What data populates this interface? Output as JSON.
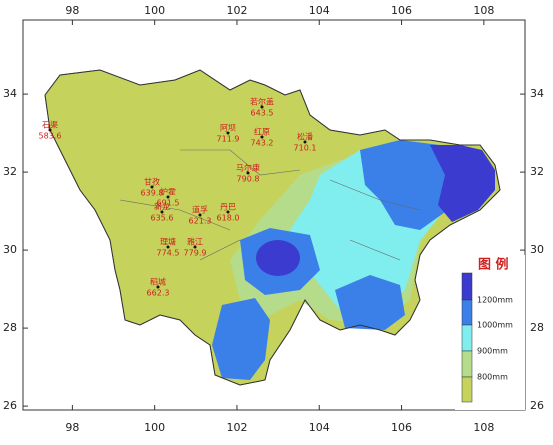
{
  "map": {
    "xlim": [
      96.8,
      109
    ],
    "ylim": [
      25.9,
      35.9
    ],
    "xticks": [
      98,
      100,
      102,
      104,
      106,
      108
    ],
    "yticks": [
      26,
      28,
      30,
      32,
      34
    ],
    "legend": {
      "title": "图 例",
      "items": [
        "1200mm",
        "1000mm",
        "900mm",
        "800mm"
      ]
    },
    "stations": [
      {
        "name": "石渠",
        "value": "583.6"
      },
      {
        "name": "若尔盖",
        "value": "643.5"
      },
      {
        "name": "阿坝",
        "value": "711.9"
      },
      {
        "name": "红原",
        "value": "743.2"
      },
      {
        "name": "松潘",
        "value": "710.1"
      },
      {
        "name": "马尔康",
        "value": "790.8"
      },
      {
        "name": "甘孜",
        "value": "639.8"
      },
      {
        "name": "炉霍",
        "value": "691.5"
      },
      {
        "name": "新龙",
        "value": "635.6"
      },
      {
        "name": "道孚",
        "value": "621.3"
      },
      {
        "name": "丹巴",
        "value": "618.0"
      },
      {
        "name": "理塘",
        "value": "774.5"
      },
      {
        "name": "雅江",
        "value": "779.9"
      },
      {
        "name": "稻城",
        "value": "662.3"
      }
    ]
  }
}
